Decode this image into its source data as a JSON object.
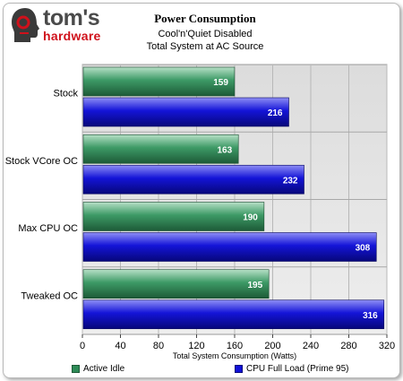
{
  "logo": {
    "main": "tom's",
    "sub": "hardware"
  },
  "chart_data": {
    "type": "bar",
    "orientation": "horizontal",
    "title": "Power Consumption",
    "subtitle": [
      "Cool'n'Quiet Disabled",
      "Total System at AC Source"
    ],
    "xlabel": "Total System Consumption (Watts)",
    "ylabel": "",
    "xlim": [
      0,
      320
    ],
    "xticks": [
      0,
      40,
      80,
      120,
      160,
      200,
      240,
      280,
      320
    ],
    "grid": true,
    "legend_position": "bottom",
    "categories": [
      "Stock",
      "Stock VCore OC",
      "Max CPU OC",
      "Tweaked OC"
    ],
    "series": [
      {
        "name": "Active Idle",
        "color": "#2e8b57",
        "values": [
          159,
          163,
          190,
          195
        ]
      },
      {
        "name": "CPU Full Load (Prime 95)",
        "color": "#1010d8",
        "values": [
          216,
          232,
          308,
          316
        ]
      }
    ]
  }
}
